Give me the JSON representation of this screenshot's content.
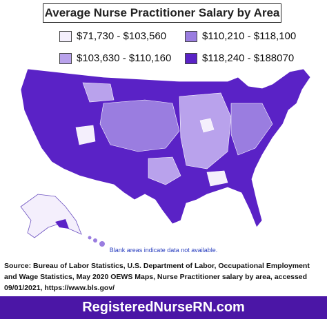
{
  "title": "Average Nurse Practitioner Salary by Area",
  "legend": [
    {
      "label": "$71,730 - $103,560",
      "color": "#f4effc"
    },
    {
      "label": "$110,210 - $118,100",
      "color": "#9a7de0"
    },
    {
      "label": "$103,630 - $110,160",
      "color": "#b9a2ec"
    },
    {
      "label": "$118,240 - $188070",
      "color": "#5a22c6"
    }
  ],
  "note": "Blank areas indicate data not available.",
  "source": "Source: Bureau of Labor Statistics, U.S. Department of Labor, Occupational Employment and Wage Statistics, May 2020 OEWS Maps, Nurse Practitioner salary by area, accessed 09/01/2021, https://www.bls.gov/",
  "footer": "RegisteredNurseRN.com"
}
